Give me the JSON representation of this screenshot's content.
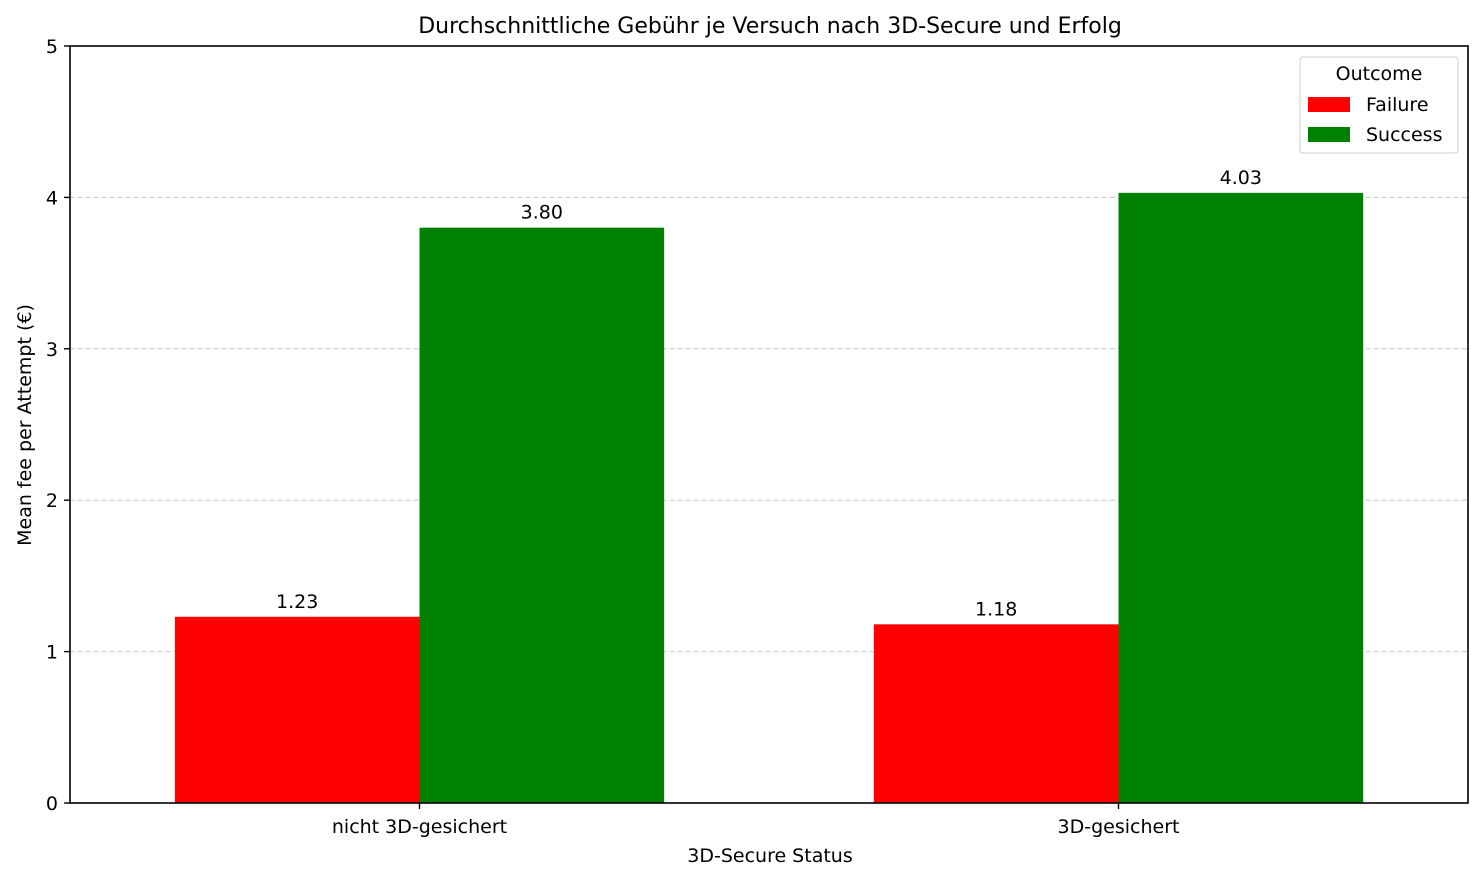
{
  "chart_data": {
    "type": "bar",
    "title": "Durchschnittliche Gebühr je Versuch nach 3D-Secure und Erfolg",
    "xlabel": "3D-Secure Status",
    "ylabel": "Mean fee per Attempt (€)",
    "categories": [
      "nicht 3D-gesichert",
      "3D-gesichert"
    ],
    "series": [
      {
        "name": "Failure",
        "color": "#ff0000",
        "values": [
          1.23,
          1.18
        ],
        "labels": [
          "1.23",
          "1.18"
        ]
      },
      {
        "name": "Success",
        "color": "#008000",
        "values": [
          3.8,
          4.03
        ],
        "labels": [
          "3.80",
          "4.03"
        ]
      }
    ],
    "ylim": [
      0,
      5
    ],
    "yticks": [
      "0",
      "1",
      "2",
      "3",
      "4",
      "5"
    ],
    "grid": "y-dashed",
    "legend": {
      "title": "Outcome",
      "position": "top-right"
    }
  }
}
